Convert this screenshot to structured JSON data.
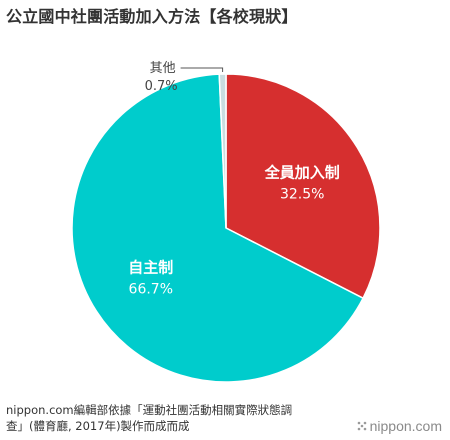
{
  "header": {
    "title": "公立國中社團活動加入方法【各校現狀】"
  },
  "chart_data": {
    "type": "pie",
    "title": "公立國中社團活動加入方法【各校現狀】",
    "start_angle_deg": 0,
    "direction": "clockwise",
    "slices": [
      {
        "label": "全員加入制",
        "value": 32.5,
        "value_label": "32.5%",
        "color": "#d62f2f",
        "label_color": "#ffffff",
        "label_position": "inside"
      },
      {
        "label": "自主制",
        "value": 66.7,
        "value_label": "66.7%",
        "color": "#00cccc",
        "label_color": "#ffffff",
        "label_position": "inside"
      },
      {
        "label": "其他",
        "value": 0.7,
        "value_label": "0.7%",
        "color": "#c9dde0",
        "label_color": "#444444",
        "label_position": "outside"
      }
    ]
  },
  "footer": {
    "source_line1": "nippon.com編輯部依據「運動社團活動相關實際狀態調",
    "source_line2": "查」(體育廳, 2017年)製作而成而成",
    "logo_text": "nippon.com"
  }
}
